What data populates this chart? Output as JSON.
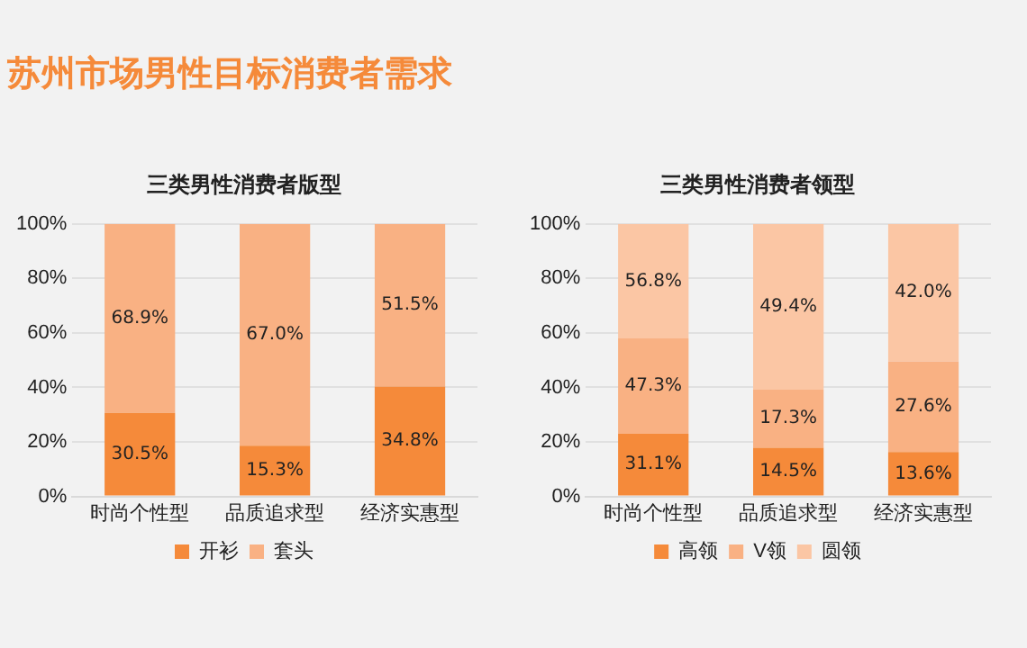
{
  "chart_data": [
    {
      "type": "bar",
      "title": "三类男性消费者版型",
      "categories": [
        "时尚个性型",
        "品质追求型",
        "经济实惠型"
      ],
      "stacked": true,
      "ylim": [
        0,
        100
      ],
      "yticks": [
        {
          "value": 0,
          "label": "0%"
        },
        {
          "value": 20,
          "label": "20%"
        },
        {
          "value": 40,
          "label": "40%"
        },
        {
          "value": 60,
          "label": "60%"
        },
        {
          "value": 80,
          "label": "80%"
        },
        {
          "value": 100,
          "label": "100%"
        }
      ],
      "grid": "y",
      "legend": "bottom",
      "annotations": [
        "苏州市场男性目标消费者需求",
        "30.5%",
        "15.3%",
        "34.8%",
        "68.9%",
        "67.0%",
        "51.5%"
      ],
      "series": [
        {
          "name": "开衫",
          "color": "#f58a3a",
          "values": [
            30.7,
            18.6,
            40.3
          ]
        },
        {
          "name": "套头",
          "color": "#f9b183",
          "values": [
            69.3,
            81.4,
            59.7
          ]
        }
      ]
    },
    {
      "type": "bar",
      "title": "三类男性消费者领型",
      "categories": [
        "时尚个性型",
        "品质追求型",
        "经济实惠型"
      ],
      "stacked": true,
      "ylim": [
        0,
        100
      ],
      "yticks": [
        {
          "value": 0,
          "label": "0%"
        },
        {
          "value": 20,
          "label": "20%"
        },
        {
          "value": 40,
          "label": "40%"
        },
        {
          "value": 60,
          "label": "60%"
        },
        {
          "value": 80,
          "label": "80%"
        },
        {
          "value": 100,
          "label": "100%"
        }
      ],
      "grid": "y",
      "legend": "bottom",
      "annotations": [
        "31.1%",
        "14.5%",
        "13.6%",
        "47.3%",
        "17.3%",
        "27.6%",
        "56.8%",
        "49.4%",
        "42.0%"
      ],
      "series": [
        {
          "name": "高领",
          "color": "#f58a3a",
          "values": [
            23.0,
            17.9,
            16.3
          ]
        },
        {
          "name": "V领",
          "color": "#f9b183",
          "values": [
            35.0,
            21.3,
            33.2
          ]
        },
        {
          "name": "圆领",
          "color": "#fbc6a4",
          "values": [
            42.0,
            60.8,
            50.5
          ]
        }
      ]
    }
  ]
}
